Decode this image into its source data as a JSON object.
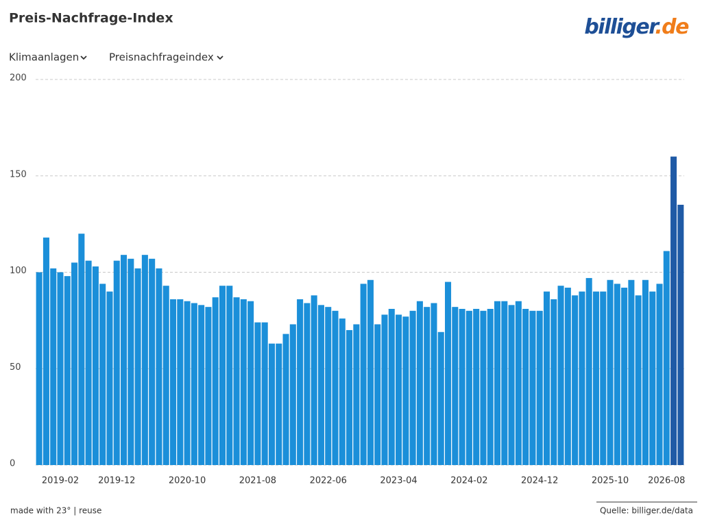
{
  "header": {
    "title": "Preis-Nachfrage-Index",
    "logo": {
      "name": "billiger",
      "tld": ".de"
    }
  },
  "filters": [
    "Klimaanlagen",
    "Preisnachfrageindex"
  ],
  "chart_data": {
    "type": "bar",
    "categories": [
      null,
      null,
      null,
      "2019-02",
      null,
      null,
      null,
      null,
      null,
      null,
      null,
      "2019-12",
      null,
      null,
      null,
      null,
      null,
      null,
      null,
      null,
      null,
      "2020-10",
      null,
      null,
      null,
      null,
      null,
      null,
      null,
      null,
      null,
      "2021-08",
      null,
      null,
      null,
      null,
      null,
      null,
      null,
      null,
      null,
      "2022-06",
      null,
      null,
      null,
      null,
      null,
      null,
      null,
      null,
      null,
      "2023-04",
      null,
      null,
      null,
      null,
      null,
      null,
      null,
      null,
      null,
      "2024-02",
      null,
      null,
      null,
      null,
      null,
      null,
      null,
      null,
      null,
      "2024-12",
      null,
      null,
      null,
      null,
      null,
      null,
      null,
      null,
      null,
      "2025-10",
      null,
      null,
      null,
      null,
      null,
      null,
      null,
      "2026-08",
      null,
      null
    ],
    "values": [
      100,
      118,
      102,
      100,
      98,
      105,
      120,
      106,
      103,
      94,
      90,
      106,
      109,
      107,
      102,
      109,
      107,
      102,
      93,
      86,
      86,
      85,
      84,
      83,
      82,
      87,
      93,
      93,
      87,
      86,
      85,
      74,
      74,
      63,
      63,
      68,
      73,
      86,
      84,
      88,
      83,
      82,
      80,
      76,
      70,
      73,
      94,
      96,
      73,
      78,
      81,
      78,
      77,
      80,
      85,
      82,
      84,
      69,
      95,
      82,
      81,
      80,
      81,
      80,
      81,
      85,
      85,
      83,
      85,
      81,
      80,
      80,
      90,
      86,
      93,
      92,
      88,
      90,
      97,
      90,
      90,
      96,
      94,
      92,
      96,
      88,
      96,
      90,
      94,
      111,
      160,
      135
    ],
    "colors": [
      "#1b8fd9",
      "#1b8fd9",
      "#1b8fd9",
      "#1b8fd9",
      "#1b8fd9",
      "#1b8fd9",
      "#1b8fd9",
      "#1b8fd9",
      "#1b8fd9",
      "#1b8fd9",
      "#1b8fd9",
      "#1b8fd9",
      "#1b8fd9",
      "#1b8fd9",
      "#1b8fd9",
      "#1b8fd9",
      "#1b8fd9",
      "#1b8fd9",
      "#1b8fd9",
      "#1b8fd9",
      "#1b8fd9",
      "#1b8fd9",
      "#1b8fd9",
      "#1b8fd9",
      "#1b8fd9",
      "#1b8fd9",
      "#1b8fd9",
      "#1b8fd9",
      "#1b8fd9",
      "#1b8fd9",
      "#1b8fd9",
      "#1b8fd9",
      "#1b8fd9",
      "#1b8fd9",
      "#1b8fd9",
      "#1b8fd9",
      "#1b8fd9",
      "#1b8fd9",
      "#1b8fd9",
      "#1b8fd9",
      "#1b8fd9",
      "#1b8fd9",
      "#1b8fd9",
      "#1b8fd9",
      "#1b8fd9",
      "#1b8fd9",
      "#1b8fd9",
      "#1b8fd9",
      "#1b8fd9",
      "#1b8fd9",
      "#1b8fd9",
      "#1b8fd9",
      "#1b8fd9",
      "#1b8fd9",
      "#1b8fd9",
      "#1b8fd9",
      "#1b8fd9",
      "#1b8fd9",
      "#1b8fd9",
      "#1b8fd9",
      "#1b8fd9",
      "#1b8fd9",
      "#1b8fd9",
      "#1b8fd9",
      "#1b8fd9",
      "#1b8fd9",
      "#1b8fd9",
      "#1b8fd9",
      "#1b8fd9",
      "#1b8fd9",
      "#1b8fd9",
      "#1b8fd9",
      "#1b8fd9",
      "#1b8fd9",
      "#1b8fd9",
      "#1b8fd9",
      "#1b8fd9",
      "#1b8fd9",
      "#1b8fd9",
      "#1b8fd9",
      "#1b8fd9",
      "#1b8fd9",
      "#1b8fd9",
      "#1b8fd9",
      "#1b8fd9",
      "#1b8fd9",
      "#1b8fd9",
      "#1b8fd9",
      "#1b8fd9",
      "#1b8fd9",
      "#1f5aa6",
      "#1f5aa6"
    ],
    "ylim": [
      0,
      200
    ],
    "yticks": [
      0,
      50,
      100,
      150,
      200
    ],
    "grid": true
  },
  "footer": {
    "credit": "made with 23° | reuse",
    "source": "Quelle: billiger.de/data"
  }
}
